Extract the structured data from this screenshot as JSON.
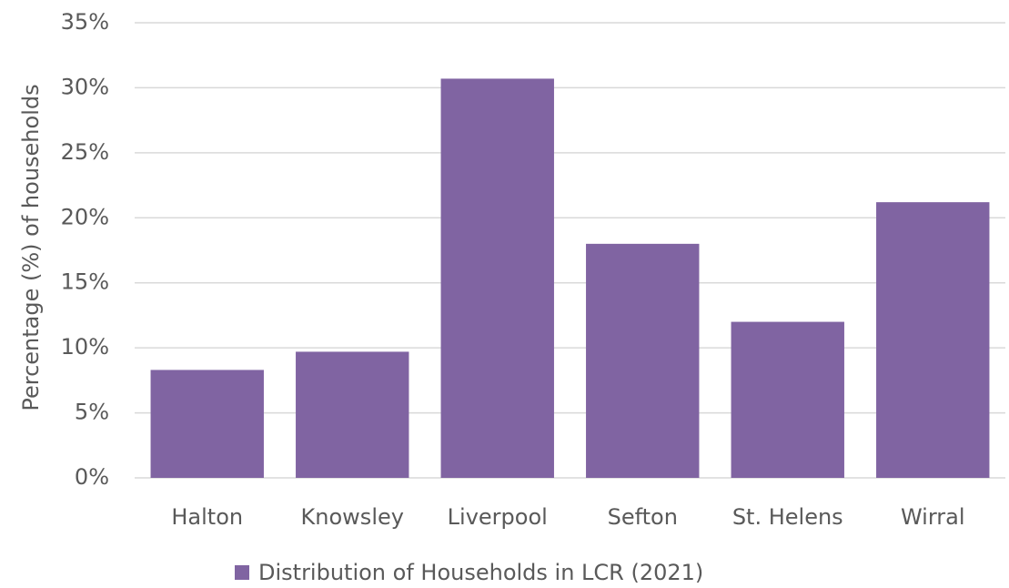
{
  "chart_data": {
    "type": "bar",
    "y_label": "Percentage (%) of households",
    "categories": [
      "Halton",
      "Knowsley",
      "Liverpool",
      "Sefton",
      "St. Helens",
      "Wirral"
    ],
    "series": [
      {
        "name": "Distribution of Households in LCR (2021)",
        "color": "#8064a2",
        "values": [
          8.3,
          9.7,
          30.7,
          18.0,
          12.0,
          21.2
        ]
      }
    ],
    "ylim": [
      0,
      35
    ],
    "yticks": [
      {
        "value": 0,
        "label": "0%"
      },
      {
        "value": 5,
        "label": "5%"
      },
      {
        "value": 10,
        "label": "10%"
      },
      {
        "value": 15,
        "label": "15%"
      },
      {
        "value": 20,
        "label": "20%"
      },
      {
        "value": 25,
        "label": "25%"
      },
      {
        "value": 30,
        "label": "30%"
      },
      {
        "value": 35,
        "label": "35%"
      }
    ],
    "grid": true,
    "legend": "bottom"
  }
}
